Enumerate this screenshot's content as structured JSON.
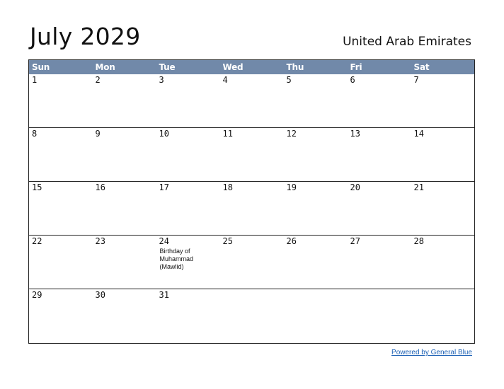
{
  "header": {
    "title": "July 2029",
    "country": "United Arab Emirates"
  },
  "calendar": {
    "weekdays": [
      "Sun",
      "Mon",
      "Tue",
      "Wed",
      "Thu",
      "Fri",
      "Sat"
    ],
    "weeks": [
      [
        {
          "day": "1"
        },
        {
          "day": "2"
        },
        {
          "day": "3"
        },
        {
          "day": "4"
        },
        {
          "day": "5"
        },
        {
          "day": "6"
        },
        {
          "day": "7"
        }
      ],
      [
        {
          "day": "8"
        },
        {
          "day": "9"
        },
        {
          "day": "10"
        },
        {
          "day": "11"
        },
        {
          "day": "12"
        },
        {
          "day": "13"
        },
        {
          "day": "14"
        }
      ],
      [
        {
          "day": "15"
        },
        {
          "day": "16"
        },
        {
          "day": "17"
        },
        {
          "day": "18"
        },
        {
          "day": "19"
        },
        {
          "day": "20"
        },
        {
          "day": "21"
        }
      ],
      [
        {
          "day": "22"
        },
        {
          "day": "23"
        },
        {
          "day": "24",
          "holiday": "Birthday of Muhammad (Mawlid)"
        },
        {
          "day": "25"
        },
        {
          "day": "26"
        },
        {
          "day": "27"
        },
        {
          "day": "28"
        }
      ],
      [
        {
          "day": "29"
        },
        {
          "day": "30"
        },
        {
          "day": "31"
        },
        {
          "day": ""
        },
        {
          "day": ""
        },
        {
          "day": ""
        },
        {
          "day": ""
        }
      ]
    ]
  },
  "footer": {
    "credit": "Powered by General Blue"
  },
  "colors": {
    "header_bg": "#7189a9",
    "header_text": "#ffffff",
    "link": "#1a5fb4"
  }
}
